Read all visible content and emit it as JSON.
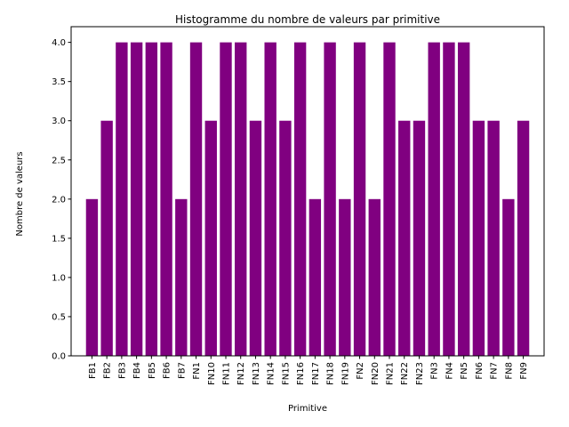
{
  "chart_data": {
    "type": "bar",
    "title": "Histogramme du nombre de valeurs par primitive",
    "xlabel": "Primitive",
    "ylabel": "Nombre de valeurs",
    "categories": [
      "FB1",
      "FB2",
      "FB3",
      "FB4",
      "FB5",
      "FB6",
      "FB7",
      "FN1",
      "FN10",
      "FN11",
      "FN12",
      "FN13",
      "FN14",
      "FN15",
      "FN16",
      "FN17",
      "FN18",
      "FN19",
      "FN2",
      "FN20",
      "FN21",
      "FN22",
      "FN23",
      "FN3",
      "FN4",
      "FN5",
      "FN6",
      "FN7",
      "FN8",
      "FN9"
    ],
    "values": [
      2,
      3,
      4,
      4,
      4,
      4,
      2,
      4,
      3,
      4,
      4,
      3,
      4,
      3,
      4,
      2,
      4,
      2,
      4,
      2,
      4,
      3,
      3,
      4,
      4,
      4,
      3,
      3,
      2,
      3
    ],
    "ylim": [
      0,
      4.2
    ],
    "yticks": [
      "0.0",
      "0.5",
      "1.0",
      "1.5",
      "2.0",
      "2.5",
      "3.0",
      "3.5",
      "4.0"
    ],
    "grid": false,
    "colors": {
      "bar": "#800080",
      "axis": "#000000"
    }
  }
}
